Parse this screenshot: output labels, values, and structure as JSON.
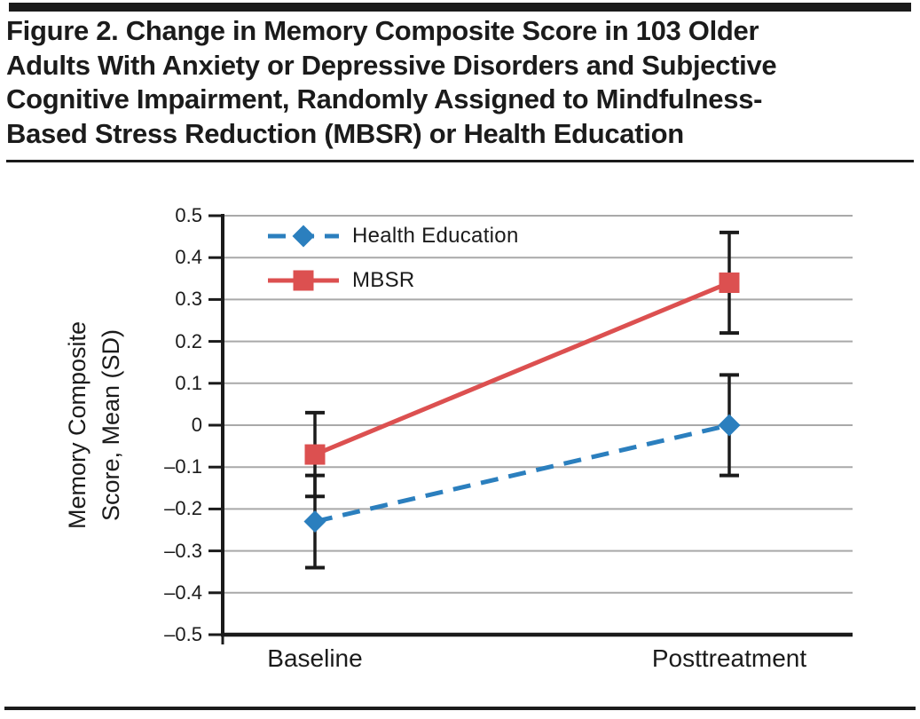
{
  "figure": {
    "title": "Figure 2. Change in Memory Composite Score in 103 Older\nAdults With Anxiety or Depressive Disorders and Subjective\nCognitive Impairment, Randomly Assigned to Mindfulness-\nBased Stress Reduction (MBSR) or Health Education"
  },
  "chart_data": {
    "type": "line",
    "categories": [
      "Baseline",
      "Posttreatment"
    ],
    "series": [
      {
        "name": "Health Education",
        "values": [
          -0.23,
          0.0
        ],
        "error_low": [
          -0.34,
          -0.12
        ],
        "error_high": [
          -0.12,
          0.12
        ],
        "color": "#2b7fbe",
        "line_style": "dashed",
        "marker": "diamond"
      },
      {
        "name": "MBSR",
        "values": [
          -0.07,
          0.34
        ],
        "error_low": [
          -0.17,
          0.22
        ],
        "error_high": [
          0.03,
          0.46
        ],
        "color": "#dc5050",
        "line_style": "solid",
        "marker": "square"
      }
    ],
    "title": "",
    "xlabel": "",
    "ylabel": "Memory Composite\nScore, Mean (SD)",
    "ylim": [
      -0.5,
      0.5
    ],
    "ytick_values": [
      0.5,
      0.4,
      0.3,
      0.2,
      0.1,
      0,
      -0.1,
      -0.2,
      -0.3,
      -0.4,
      -0.5
    ],
    "ytick_labels": [
      "0.5",
      "0.4",
      "0.3",
      "0.2",
      "0.1",
      "0",
      "–0.1",
      "–0.2",
      "–0.3",
      "–0.4",
      "–0.5"
    ],
    "grid": true,
    "gridline_color": "#a9a9a9",
    "axis_color": "#1b1b1b",
    "error_bar_color": "#1b1b1b",
    "legend_position": "upper-left"
  }
}
